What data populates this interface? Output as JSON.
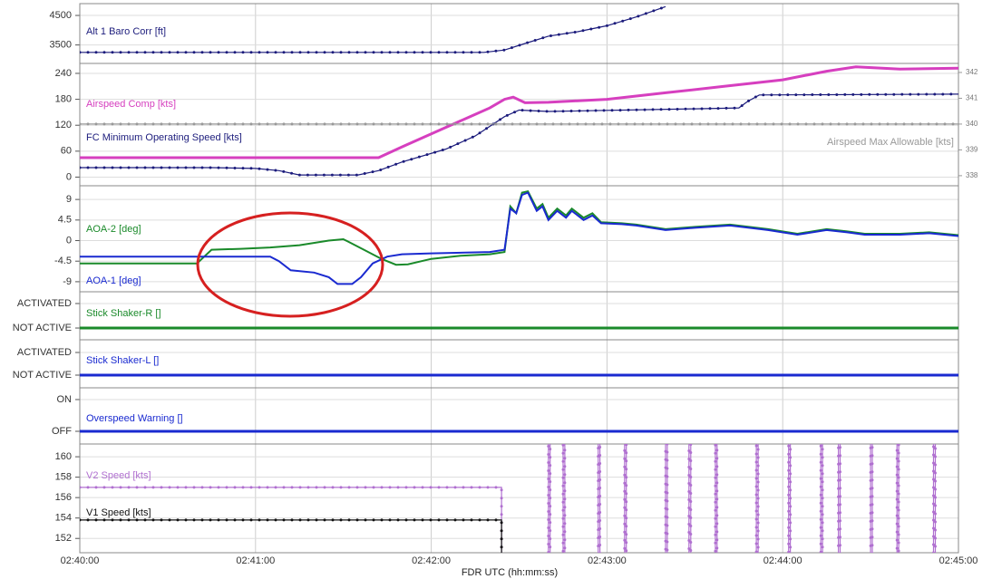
{
  "x_axis": {
    "label": "FDR  UTC (hh:mm:ss)",
    "xlim": [
      0,
      300
    ],
    "xticks": [
      {
        "value": 0,
        "label": "02:40:00"
      },
      {
        "value": 60,
        "label": "02:41:00"
      },
      {
        "value": 120,
        "label": "02:42:00"
      },
      {
        "value": 180,
        "label": "02:43:00"
      },
      {
        "value": 240,
        "label": "02:44:00"
      },
      {
        "value": 300,
        "label": "02:45:00"
      }
    ]
  },
  "chart_data": [
    {
      "type": "line",
      "ylim": [
        2875,
        4900
      ],
      "yticks": [
        3500,
        4500
      ],
      "series": [
        {
          "name": "Alt 1 Baro Corr [ft]",
          "color": "#1c1c7c",
          "markers": true,
          "x": [
            0,
            138,
            145,
            152,
            160,
            170,
            180,
            190,
            200
          ],
          "values": [
            3250,
            3250,
            3330,
            3550,
            3800,
            3950,
            4150,
            4450,
            4800
          ]
        }
      ]
    },
    {
      "type": "line",
      "ylim": [
        -20,
        263
      ],
      "yticks": [
        0,
        60,
        120,
        180,
        240
      ],
      "y2lim": [
        337.61,
        342.35
      ],
      "y2ticks": [
        338,
        339,
        340,
        341,
        342
      ],
      "series": [
        {
          "name": "Airspeed Comp [kts]",
          "color": "#d63fbf",
          "width": 3,
          "x": [
            0,
            102,
            110,
            120,
            130,
            140,
            145,
            148,
            152,
            160,
            180,
            200,
            220,
            240,
            255,
            265,
            280,
            300
          ],
          "values": [
            45,
            45,
            70,
            100,
            130,
            160,
            180,
            185,
            172,
            173,
            180,
            195,
            210,
            225,
            245,
            255,
            250,
            252
          ]
        },
        {
          "name": "FC Minimum Operating Speed [kts]",
          "color": "#1c1c7c",
          "markers": true,
          "x": [
            0,
            45,
            60,
            68,
            75,
            95,
            102,
            110,
            125,
            135,
            145,
            150,
            160,
            210,
            225,
            228,
            232,
            300
          ],
          "values": [
            22,
            22,
            20,
            15,
            5,
            5,
            15,
            35,
            65,
            95,
            140,
            155,
            152,
            158,
            160,
            175,
            190,
            192
          ]
        },
        {
          "name": "Airspeed Max Allowable [kts]",
          "color": "#999999",
          "axis": "y2",
          "markers": true,
          "x": [
            0,
            300
          ],
          "values": [
            340,
            340
          ]
        }
      ]
    },
    {
      "type": "line",
      "ylim": [
        -11.2,
        12
      ],
      "yticks": [
        -9,
        -4.5,
        0,
        4.5,
        9
      ],
      "series": [
        {
          "name": "AOA-2 [deg]",
          "color": "#1a8a2a",
          "width": 2,
          "x": [
            0,
            40,
            45,
            55,
            65,
            75,
            85,
            90,
            97,
            103,
            108,
            112,
            120,
            130,
            140,
            145,
            147,
            149,
            151,
            153,
            156,
            158,
            160,
            163,
            166,
            168,
            172,
            175,
            178,
            185,
            190,
            200,
            210,
            222,
            235,
            245,
            255,
            262,
            268,
            280,
            290,
            300
          ],
          "values": [
            -5,
            -5,
            -2,
            -1.8,
            -1.5,
            -1,
            0,
            0.3,
            -2,
            -4,
            -5.3,
            -5.2,
            -4,
            -3.3,
            -3,
            -2.5,
            7.5,
            6,
            10.5,
            10.8,
            7,
            8,
            5,
            7,
            5.5,
            7,
            5,
            6,
            4,
            3.8,
            3.5,
            2.5,
            3,
            3.5,
            2.5,
            1.5,
            2.5,
            2,
            1.5,
            1.5,
            1.8,
            1.2
          ]
        },
        {
          "name": "AOA-1 [deg]",
          "color": "#1a2ad0",
          "width": 2,
          "x": [
            0,
            65,
            68,
            72,
            80,
            85,
            88,
            93,
            96,
            100,
            105,
            110,
            120,
            140,
            145,
            147,
            149,
            151,
            153,
            156,
            158,
            160,
            163,
            166,
            168,
            172,
            175,
            178,
            185,
            190,
            200,
            210,
            222,
            235,
            245,
            255,
            262,
            268,
            280,
            290,
            300
          ],
          "values": [
            -3.5,
            -3.5,
            -4.5,
            -6.5,
            -7,
            -8,
            -9.5,
            -9.5,
            -8,
            -5,
            -3.5,
            -3,
            -2.8,
            -2.5,
            -2,
            7,
            6,
            10,
            10.5,
            6.5,
            7.5,
            4.5,
            6.5,
            5,
            6.5,
            4.5,
            5.5,
            3.8,
            3.6,
            3.3,
            2.3,
            2.8,
            3.3,
            2.3,
            1.3,
            2.3,
            1.8,
            1.3,
            1.3,
            1.6,
            1
          ]
        }
      ]
    },
    {
      "type": "line",
      "ylim": [
        -0.48,
        1.48
      ],
      "yticks": [
        {
          "value": 0,
          "label": "NOT ACTIVE"
        },
        {
          "value": 1,
          "label": "ACTIVATED"
        }
      ],
      "series": [
        {
          "name": "Stick Shaker-R []",
          "color": "#1a8a2a",
          "width": 3,
          "x": [
            0,
            300
          ],
          "values": [
            0,
            0
          ]
        }
      ]
    },
    {
      "type": "line",
      "ylim": [
        -0.56,
        1.56
      ],
      "yticks": [
        {
          "value": 0,
          "label": "NOT ACTIVE"
        },
        {
          "value": 1,
          "label": "ACTIVATED"
        }
      ],
      "series": [
        {
          "name": "Stick Shaker-L []",
          "color": "#1a2ad0",
          "width": 3,
          "x": [
            0,
            300
          ],
          "values": [
            0,
            0
          ]
        }
      ]
    },
    {
      "type": "line",
      "ylim": [
        -0.4,
        1.37
      ],
      "yticks": [
        {
          "value": 0,
          "label": "OFF"
        },
        {
          "value": 1,
          "label": "ON"
        }
      ],
      "series": [
        {
          "name": "Overspeed Warning []",
          "color": "#1a2ad0",
          "width": 3,
          "x": [
            0,
            300
          ],
          "values": [
            0,
            0
          ]
        }
      ]
    },
    {
      "type": "line",
      "ylim": [
        150.6,
        161.25
      ],
      "yticks": [
        152,
        154,
        156,
        158,
        160
      ],
      "series": [
        {
          "name": "V2 Speed [kts]",
          "color": "#b070d0",
          "markers": true,
          "x": [
            0,
            144,
            144,
            160,
            160,
            160.6,
            160.6,
            165,
            165,
            165.6,
            165.6,
            177,
            177,
            177.6,
            177.6,
            186,
            186,
            186.6,
            186.6,
            200,
            200,
            200.6,
            200.6,
            208,
            208,
            208.6,
            208.6,
            217,
            217,
            217.6,
            217.6,
            231,
            231,
            231.6,
            231.6,
            242,
            242,
            242.6,
            242.6,
            253,
            253,
            253.6,
            253.6,
            259,
            259,
            259.6,
            259.6,
            270,
            270,
            270.6,
            270.6,
            279,
            279,
            279.6,
            279.6,
            291.5,
            291.5,
            292.1,
            292.1
          ],
          "values": [
            157,
            157,
            150,
            150,
            162,
            162,
            150,
            150,
            162,
            162,
            150,
            150,
            162,
            162,
            150,
            150,
            162,
            162,
            150,
            150,
            162,
            162,
            150,
            150,
            162,
            162,
            150,
            150,
            162,
            162,
            150,
            150,
            162,
            162,
            150,
            150,
            162,
            162,
            150,
            150,
            162,
            162,
            150,
            150,
            162,
            162,
            150,
            150,
            162,
            162,
            150,
            150,
            162,
            162,
            150,
            150,
            162,
            162,
            150
          ]
        },
        {
          "name": "V1 Speed [kts]",
          "color": "#111111",
          "markers": true,
          "x": [
            0,
            144,
            144
          ],
          "values": [
            153.8,
            153.8,
            150
          ]
        }
      ]
    }
  ]
}
